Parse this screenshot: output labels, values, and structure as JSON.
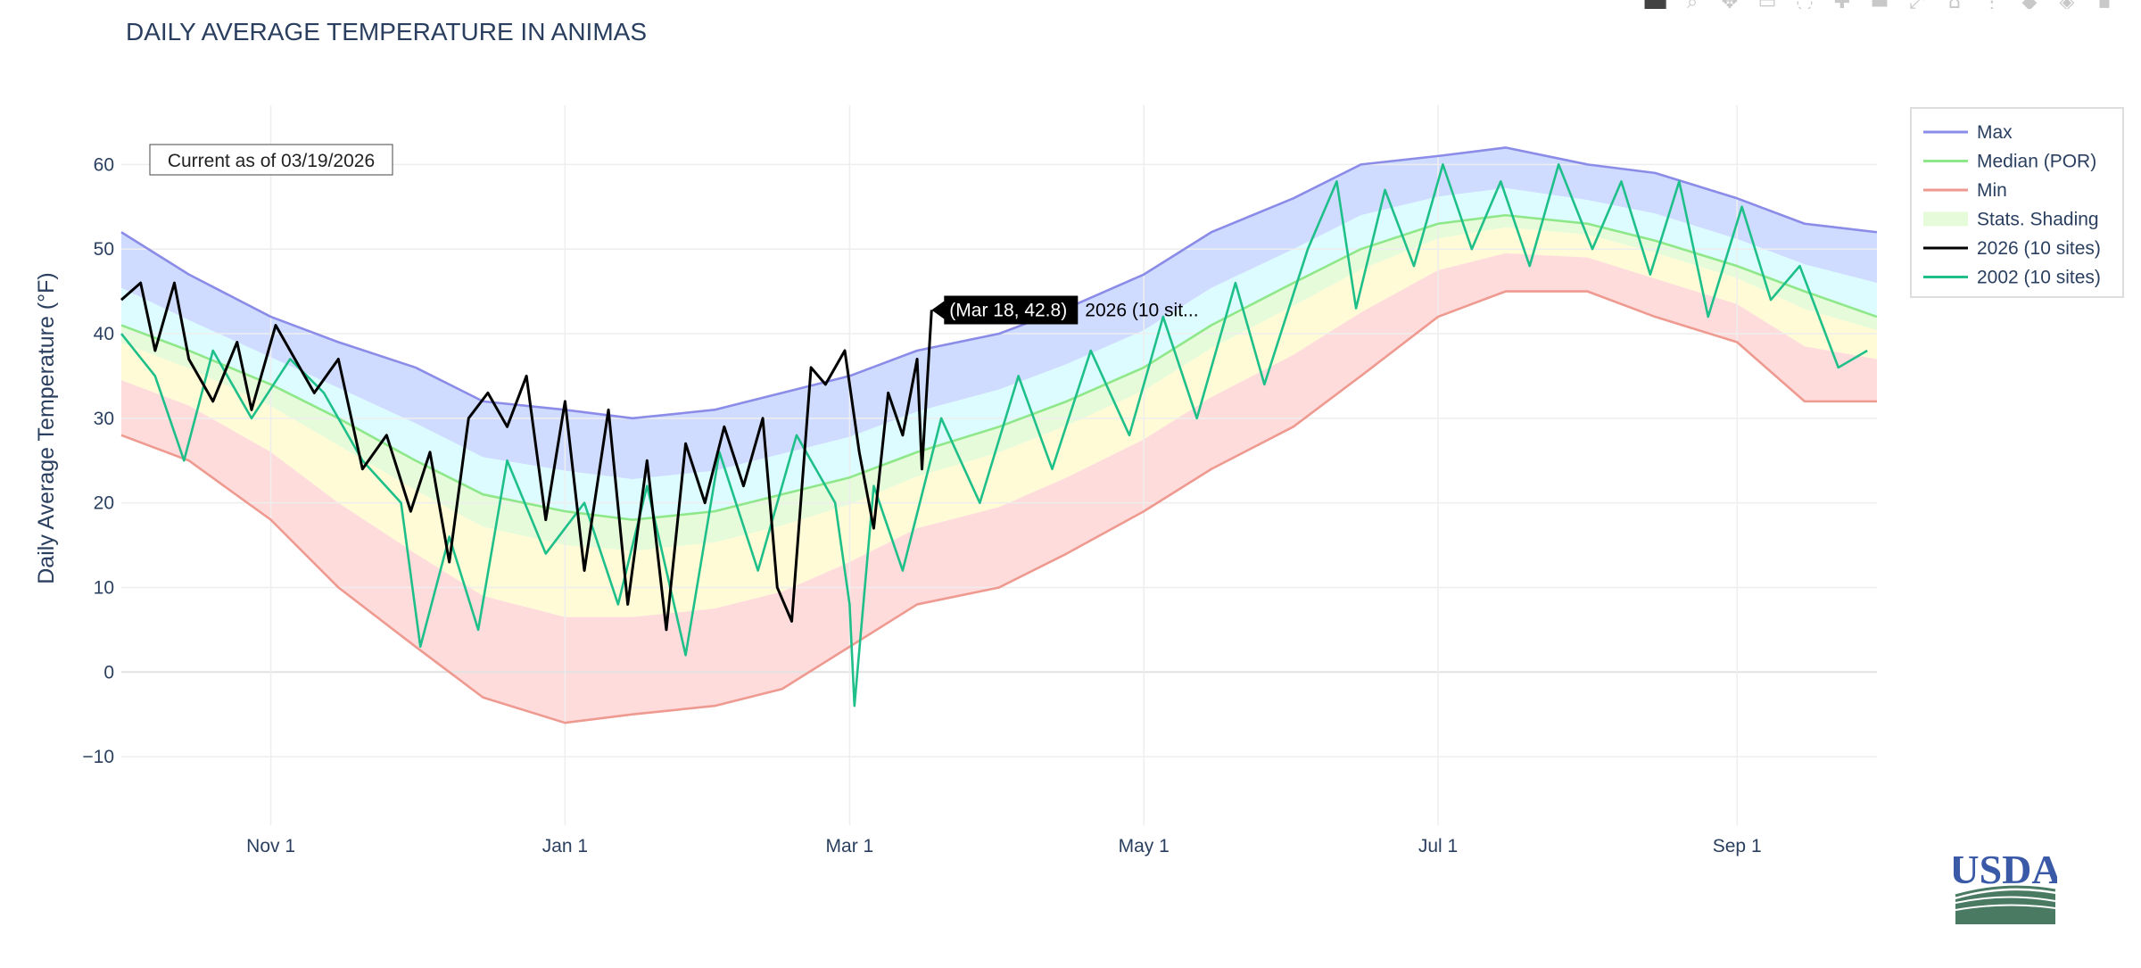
{
  "chart_data": {
    "type": "line",
    "title": "DAILY AVERAGE TEMPERATURE IN ANIMAS",
    "ylabel": "Daily Average Temperature (°F)",
    "xlabel": "",
    "annotation": "Current as of 03/19/2026",
    "ylim": [
      -16,
      67
    ],
    "yticks": [
      -10,
      0,
      10,
      20,
      30,
      40,
      50,
      60
    ],
    "x_range": [
      "2025-10-01",
      "2026-09-30"
    ],
    "xticks": [
      {
        "date": "2025-11-01",
        "label": "Nov 1"
      },
      {
        "date": "2026-01-01",
        "label": "Jan 1"
      },
      {
        "date": "2026-03-01",
        "label": "Mar 1"
      },
      {
        "date": "2026-05-01",
        "label": "May 1"
      },
      {
        "date": "2026-07-01",
        "label": "Jul 1"
      },
      {
        "date": "2026-09-01",
        "label": "Sep 1"
      }
    ],
    "grid": true,
    "legend_position": "top-right",
    "legend": [
      "Max",
      "Median (POR)",
      "Min",
      "Stats. Shading",
      "2026 (10 sites)",
      "2002 (10 sites)"
    ],
    "band_colors": [
      "#cfdcff",
      "#dcfcff",
      "#e6fbd9",
      "#fffbd6",
      "#ffdcdc"
    ],
    "series": [
      {
        "name": "Max",
        "color": "#8b8be8",
        "points": [
          [
            "2025-10-01",
            52
          ],
          [
            "2025-10-15",
            47
          ],
          [
            "2025-11-01",
            42
          ],
          [
            "2025-11-15",
            39
          ],
          [
            "2025-12-01",
            36
          ],
          [
            "2025-12-15",
            32
          ],
          [
            "2026-01-01",
            31
          ],
          [
            "2026-01-15",
            30
          ],
          [
            "2026-02-01",
            31
          ],
          [
            "2026-02-15",
            33
          ],
          [
            "2026-03-01",
            35
          ],
          [
            "2026-03-15",
            38
          ],
          [
            "2026-04-01",
            40
          ],
          [
            "2026-04-15",
            43
          ],
          [
            "2026-05-01",
            47
          ],
          [
            "2026-05-15",
            52
          ],
          [
            "2026-06-01",
            56
          ],
          [
            "2026-06-15",
            60
          ],
          [
            "2026-07-01",
            61
          ],
          [
            "2026-07-15",
            62
          ],
          [
            "2026-08-01",
            60
          ],
          [
            "2026-08-15",
            59
          ],
          [
            "2026-09-01",
            56
          ],
          [
            "2026-09-15",
            53
          ],
          [
            "2026-09-30",
            52
          ]
        ]
      },
      {
        "name": "Median (POR)",
        "color": "#8ee88a",
        "points": [
          [
            "2025-10-01",
            41
          ],
          [
            "2025-10-15",
            38
          ],
          [
            "2025-11-01",
            34
          ],
          [
            "2025-11-15",
            30
          ],
          [
            "2025-12-01",
            25
          ],
          [
            "2025-12-15",
            21
          ],
          [
            "2026-01-01",
            19
          ],
          [
            "2026-01-15",
            18
          ],
          [
            "2026-02-01",
            19
          ],
          [
            "2026-02-15",
            21
          ],
          [
            "2026-03-01",
            23
          ],
          [
            "2026-03-15",
            26
          ],
          [
            "2026-04-01",
            29
          ],
          [
            "2026-04-15",
            32
          ],
          [
            "2026-05-01",
            36
          ],
          [
            "2026-05-15",
            41
          ],
          [
            "2026-06-01",
            46
          ],
          [
            "2026-06-15",
            50
          ],
          [
            "2026-07-01",
            53
          ],
          [
            "2026-07-15",
            54
          ],
          [
            "2026-08-01",
            53
          ],
          [
            "2026-08-15",
            51
          ],
          [
            "2026-09-01",
            48
          ],
          [
            "2026-09-15",
            45
          ],
          [
            "2026-09-30",
            42
          ]
        ]
      },
      {
        "name": "Min",
        "color": "#ef9a90",
        "points": [
          [
            "2025-10-01",
            28
          ],
          [
            "2025-10-15",
            25
          ],
          [
            "2025-11-01",
            18
          ],
          [
            "2025-11-15",
            10
          ],
          [
            "2025-12-01",
            3
          ],
          [
            "2025-12-15",
            -3
          ],
          [
            "2026-01-01",
            -6
          ],
          [
            "2026-01-15",
            -5
          ],
          [
            "2026-02-01",
            -4
          ],
          [
            "2026-02-15",
            -2
          ],
          [
            "2026-03-01",
            3
          ],
          [
            "2026-03-15",
            8
          ],
          [
            "2026-04-01",
            10
          ],
          [
            "2026-04-15",
            14
          ],
          [
            "2026-05-01",
            19
          ],
          [
            "2026-05-15",
            24
          ],
          [
            "2026-06-01",
            29
          ],
          [
            "2026-06-15",
            35
          ],
          [
            "2026-07-01",
            42
          ],
          [
            "2026-07-15",
            45
          ],
          [
            "2026-08-01",
            45
          ],
          [
            "2026-08-15",
            42
          ],
          [
            "2026-09-01",
            39
          ],
          [
            "2026-09-15",
            32
          ],
          [
            "2026-09-30",
            32
          ]
        ]
      },
      {
        "name": "2026 (10 sites)",
        "color": "#000000",
        "points": [
          [
            "2025-10-01",
            44
          ],
          [
            "2025-10-05",
            46
          ],
          [
            "2025-10-08",
            38
          ],
          [
            "2025-10-12",
            46
          ],
          [
            "2025-10-15",
            37
          ],
          [
            "2025-10-20",
            32
          ],
          [
            "2025-10-25",
            39
          ],
          [
            "2025-10-28",
            31
          ],
          [
            "2025-11-02",
            41
          ],
          [
            "2025-11-06",
            37
          ],
          [
            "2025-11-10",
            33
          ],
          [
            "2025-11-15",
            37
          ],
          [
            "2025-11-20",
            24
          ],
          [
            "2025-11-25",
            28
          ],
          [
            "2025-11-30",
            19
          ],
          [
            "2025-12-04",
            26
          ],
          [
            "2025-12-08",
            13
          ],
          [
            "2025-12-12",
            30
          ],
          [
            "2025-12-16",
            33
          ],
          [
            "2025-12-20",
            29
          ],
          [
            "2025-12-24",
            35
          ],
          [
            "2025-12-28",
            18
          ],
          [
            "2026-01-01",
            32
          ],
          [
            "2026-01-05",
            12
          ],
          [
            "2026-01-10",
            31
          ],
          [
            "2026-01-14",
            8
          ],
          [
            "2026-01-18",
            25
          ],
          [
            "2026-01-22",
            5
          ],
          [
            "2026-01-26",
            27
          ],
          [
            "2026-01-30",
            20
          ],
          [
            "2026-02-03",
            29
          ],
          [
            "2026-02-07",
            22
          ],
          [
            "2026-02-11",
            30
          ],
          [
            "2026-02-14",
            10
          ],
          [
            "2026-02-17",
            6
          ],
          [
            "2026-02-21",
            36
          ],
          [
            "2026-02-24",
            34
          ],
          [
            "2026-02-28",
            38
          ],
          [
            "2026-03-03",
            26
          ],
          [
            "2026-03-06",
            17
          ],
          [
            "2026-03-09",
            33
          ],
          [
            "2026-03-12",
            28
          ],
          [
            "2026-03-15",
            37
          ],
          [
            "2026-03-16",
            24
          ],
          [
            "2026-03-18",
            42.8
          ]
        ]
      },
      {
        "name": "2002 (10 sites)",
        "color": "#1fbf8a",
        "points": [
          [
            "2025-10-01",
            40
          ],
          [
            "2025-10-08",
            35
          ],
          [
            "2025-10-14",
            25
          ],
          [
            "2025-10-20",
            38
          ],
          [
            "2025-10-28",
            30
          ],
          [
            "2025-11-05",
            37
          ],
          [
            "2025-11-12",
            33
          ],
          [
            "2025-11-20",
            25
          ],
          [
            "2025-11-28",
            20
          ],
          [
            "2025-12-02",
            3
          ],
          [
            "2025-12-08",
            16
          ],
          [
            "2025-12-14",
            5
          ],
          [
            "2025-12-20",
            25
          ],
          [
            "2025-12-28",
            14
          ],
          [
            "2026-01-05",
            20
          ],
          [
            "2026-01-12",
            8
          ],
          [
            "2026-01-18",
            22
          ],
          [
            "2026-01-26",
            2
          ],
          [
            "2026-02-02",
            26
          ],
          [
            "2026-02-10",
            12
          ],
          [
            "2026-02-18",
            28
          ],
          [
            "2026-02-26",
            20
          ],
          [
            "2026-03-01",
            8
          ],
          [
            "2026-03-02",
            -4
          ],
          [
            "2026-03-06",
            22
          ],
          [
            "2026-03-12",
            12
          ],
          [
            "2026-03-20",
            30
          ],
          [
            "2026-03-28",
            20
          ],
          [
            "2026-04-05",
            35
          ],
          [
            "2026-04-12",
            24
          ],
          [
            "2026-04-20",
            38
          ],
          [
            "2026-04-28",
            28
          ],
          [
            "2026-05-05",
            42
          ],
          [
            "2026-05-12",
            30
          ],
          [
            "2026-05-20",
            46
          ],
          [
            "2026-05-26",
            34
          ],
          [
            "2026-06-04",
            50
          ],
          [
            "2026-06-10",
            58
          ],
          [
            "2026-06-14",
            43
          ],
          [
            "2026-06-20",
            57
          ],
          [
            "2026-06-26",
            48
          ],
          [
            "2026-07-02",
            60
          ],
          [
            "2026-07-08",
            50
          ],
          [
            "2026-07-14",
            58
          ],
          [
            "2026-07-20",
            48
          ],
          [
            "2026-07-26",
            60
          ],
          [
            "2026-08-02",
            50
          ],
          [
            "2026-08-08",
            58
          ],
          [
            "2026-08-14",
            47
          ],
          [
            "2026-08-20",
            58
          ],
          [
            "2026-08-26",
            42
          ],
          [
            "2026-09-02",
            55
          ],
          [
            "2026-09-08",
            44
          ],
          [
            "2026-09-14",
            48
          ],
          [
            "2026-09-22",
            36
          ],
          [
            "2026-09-28",
            38
          ]
        ]
      }
    ],
    "hover": {
      "date": "2026-03-18",
      "value": 42.8,
      "label": "(Mar 18, 42.8)",
      "series_label": "2026 (10 sit..."
    }
  },
  "logo_text": "USDA",
  "modebar": [
    "camera-icon",
    "zoom-icon",
    "pan-icon",
    "select-icon",
    "lasso-icon",
    "zoom-in-icon",
    "zoom-out-icon",
    "autoscale-icon",
    "reset-axes-icon",
    "spike-icon",
    "hover-closest-icon",
    "hover-compare-icon",
    "home-icon"
  ]
}
